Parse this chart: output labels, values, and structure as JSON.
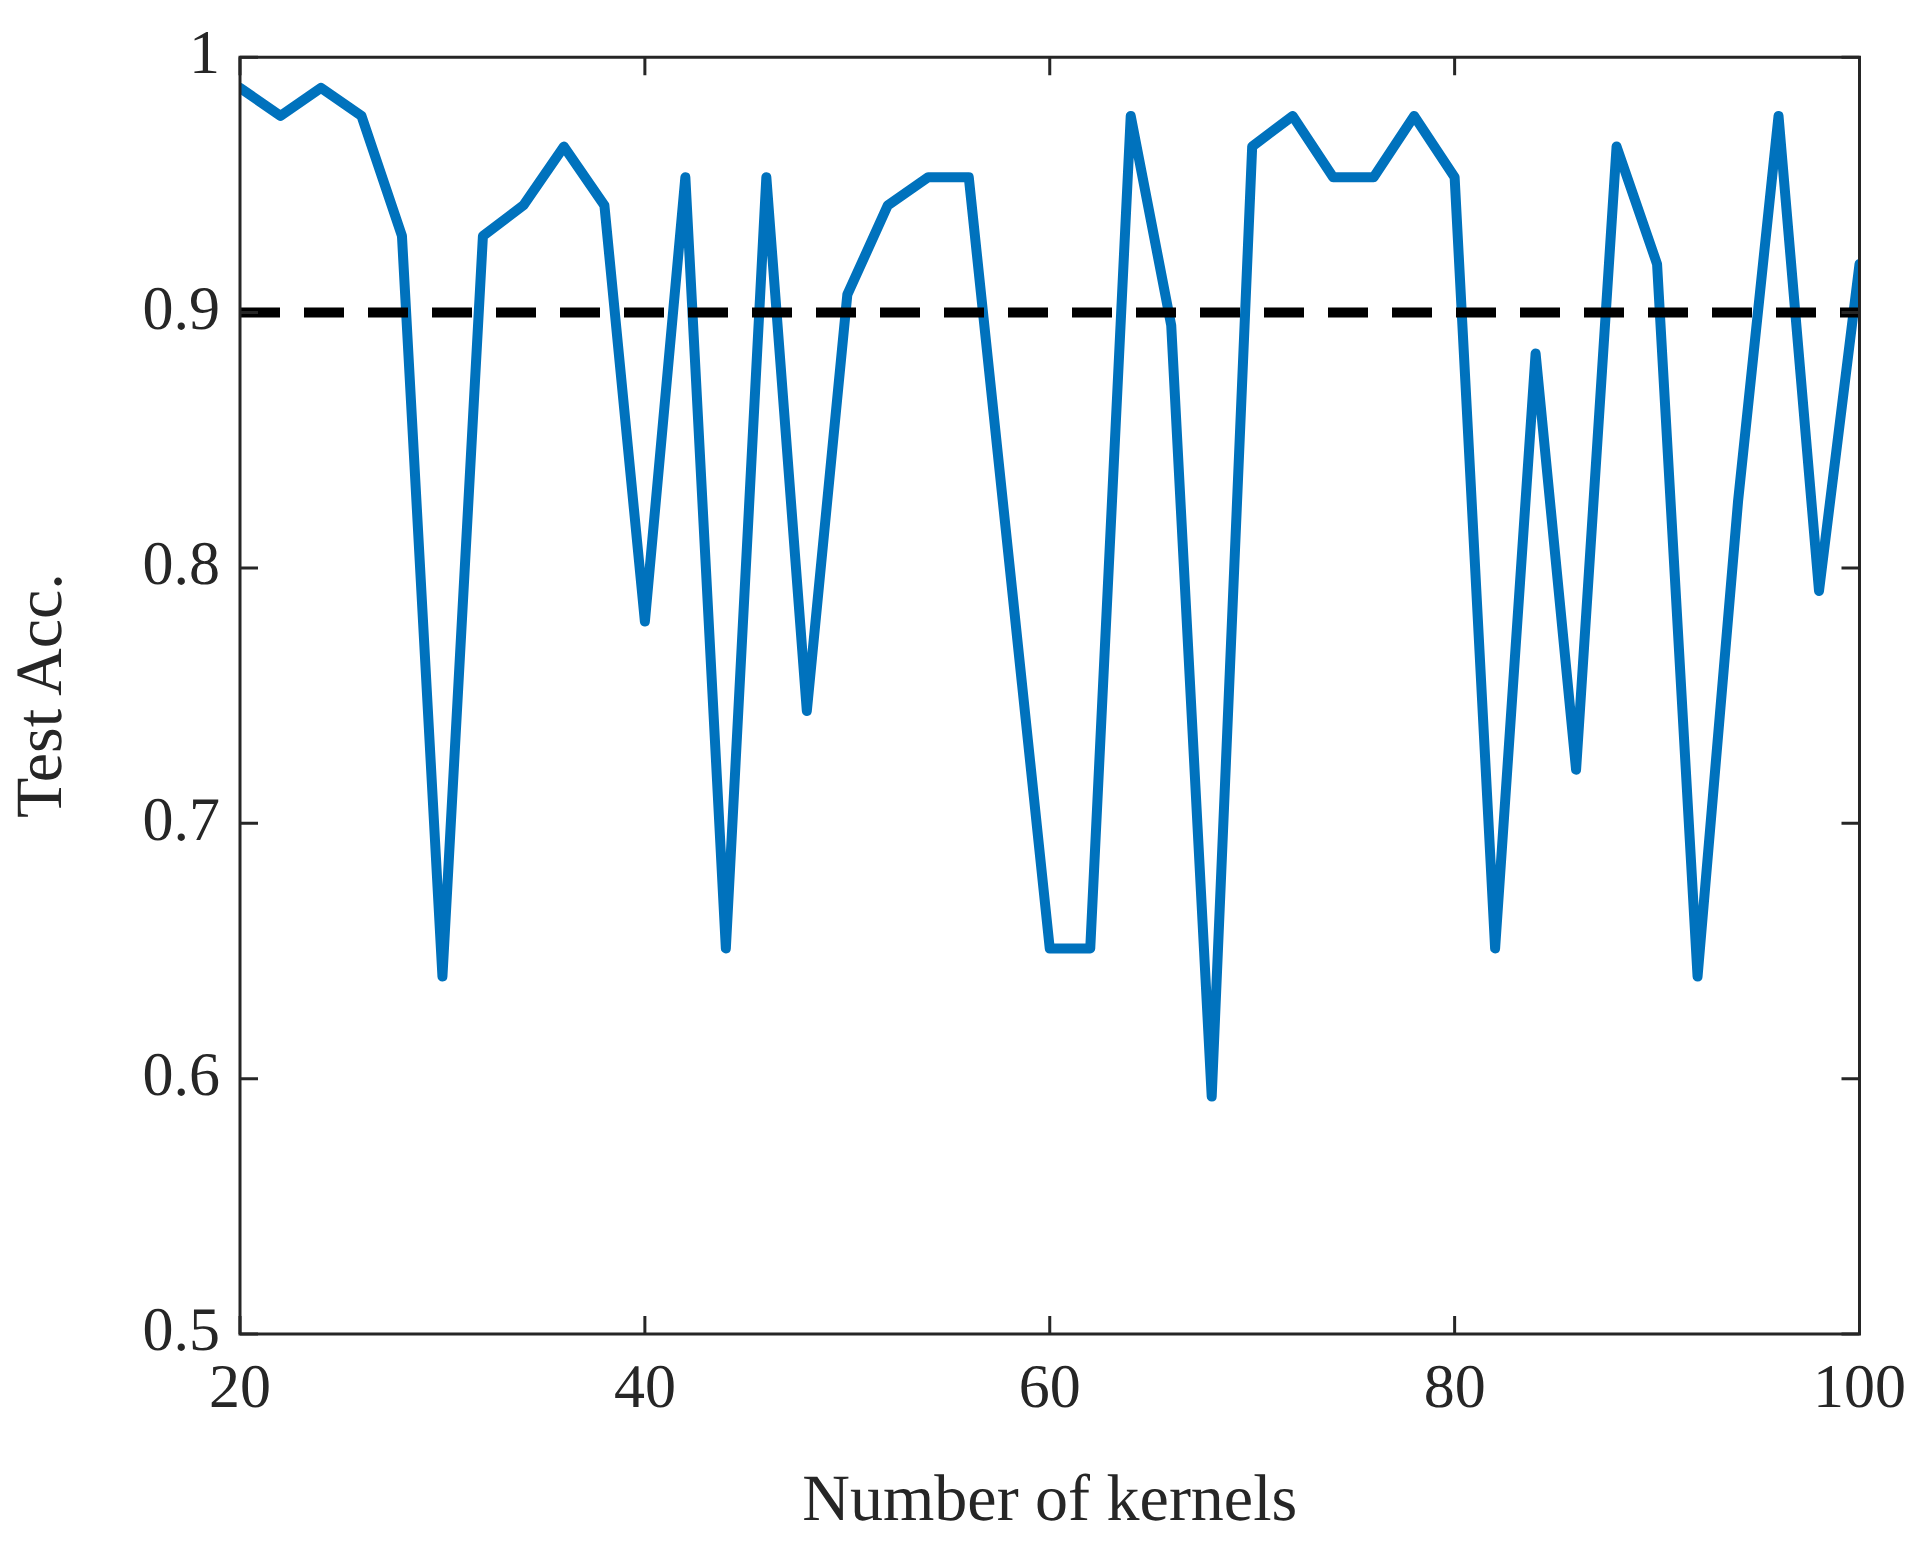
{
  "chart_data": {
    "type": "line",
    "xlabel": "Number of kernels",
    "ylabel": "Test Acc.",
    "x": [
      20,
      22,
      24,
      26,
      28,
      30,
      32,
      34,
      36,
      38,
      40,
      42,
      44,
      46,
      48,
      50,
      52,
      54,
      56,
      58,
      60,
      62,
      64,
      66,
      68,
      70,
      72,
      74,
      76,
      78,
      80,
      82,
      84,
      86,
      88,
      90,
      92,
      94,
      96,
      98,
      100
    ],
    "series": [
      {
        "color": "#0072bd",
        "values": [
          0.988,
          0.977,
          0.988,
          0.977,
          0.93,
          0.64,
          0.93,
          0.942,
          0.965,
          0.942,
          0.779,
          0.953,
          0.651,
          0.953,
          0.744,
          0.907,
          0.942,
          0.953,
          0.953,
          0.802,
          0.651,
          0.651,
          0.977,
          0.895,
          0.593,
          0.965,
          0.977,
          0.953,
          0.953,
          0.977,
          0.953,
          0.651,
          0.884,
          0.721,
          0.965,
          0.919,
          0.64,
          0.826,
          0.977,
          0.791,
          0.919
        ]
      }
    ],
    "xlim": [
      20,
      100
    ],
    "xticks": [
      20,
      40,
      60,
      80,
      100
    ],
    "ylim": [
      0.5,
      1
    ],
    "yticks": [
      0.5,
      0.6,
      0.7,
      0.8,
      0.9,
      1
    ],
    "ref_lines": [
      {
        "axis": "y",
        "value": 0.9,
        "color": "#000000",
        "line_style": "dashed"
      }
    ],
    "grid": false,
    "legend": false,
    "marker": "none",
    "line_style": "solid"
  }
}
